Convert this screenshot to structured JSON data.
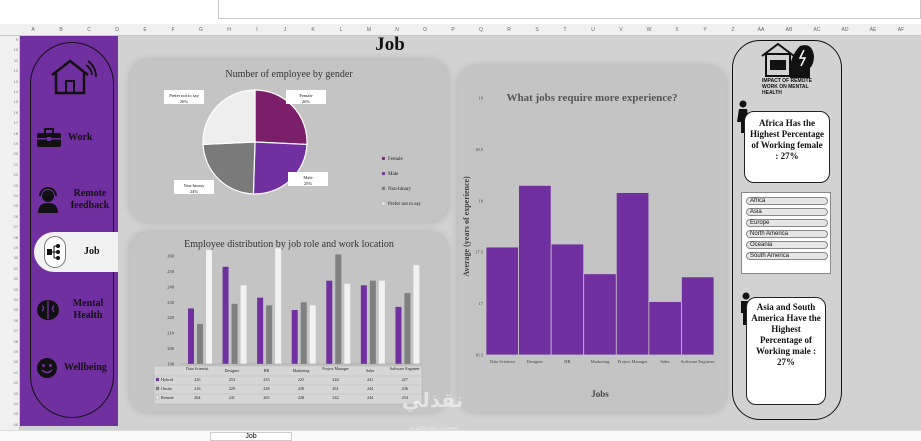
{
  "spreadsheet": {
    "columns": [
      "A",
      "B",
      "C",
      "D",
      "E",
      "F",
      "G",
      "H",
      "I",
      "J",
      "K",
      "L",
      "M",
      "N",
      "O",
      "P",
      "Q",
      "R",
      "S",
      "T",
      "U",
      "V",
      "W",
      "X",
      "Y",
      "Z",
      "AA",
      "AB",
      "AC",
      "AD",
      "AE",
      "AF"
    ],
    "rows": [
      "9",
      "10",
      "11",
      "12",
      "13",
      "14",
      "15",
      "16",
      "17",
      "18",
      "19",
      "20",
      "21",
      "22",
      "23",
      "24",
      "25",
      "26",
      "27",
      "28",
      "29",
      "30",
      "31",
      "32",
      "33",
      "34",
      "35",
      "36",
      "37",
      "38",
      "39",
      "40",
      "41",
      "42",
      "43",
      "44",
      "45",
      "46"
    ],
    "sheet_tab": "Job"
  },
  "title": "Job",
  "nav": {
    "items": [
      {
        "label": "Work",
        "icon": "briefcase-icon"
      },
      {
        "label": "Remote feedback",
        "icon": "headset-user-icon"
      },
      {
        "label": "Job",
        "icon": "org-chart-icon",
        "active": true
      },
      {
        "label": "Mental Health",
        "icon": "brain-icon"
      },
      {
        "label": "Wellbeing",
        "icon": "happy-face-icon"
      }
    ]
  },
  "brand": {
    "badge_text": "IMPACT OF REMOTE WORK ON MENTAL HEALTH"
  },
  "notes": {
    "female": "Africa Has the Highest Percentage of Working female : 27%",
    "male": "Asia and South America Have the Highest Percentage of Working male : 27%"
  },
  "slicer": {
    "items": [
      "Africa",
      "Asia",
      "Europe",
      "North America",
      "Oceania",
      "South America"
    ]
  },
  "watermark": {
    "main": "نقذلي",
    "sub": "nafezly.com"
  },
  "chart_data": [
    {
      "type": "pie",
      "title": "Number of employee by gender",
      "labels": [
        "Female",
        "Male",
        "Non-binary",
        "Prefer not to say"
      ],
      "data_labels": [
        "Female\n26%",
        "Male\n25%",
        "Non-binary\n24%",
        "Prefer not to say\n26%"
      ],
      "values": [
        26,
        25,
        24,
        26
      ],
      "colors": [
        "#7b1f6a",
        "#7030a0",
        "#7a7a7a",
        "#eeeeee"
      ],
      "legend": "right"
    },
    {
      "type": "bar",
      "title": "Employee distribution by job role and work location",
      "categories": [
        "Data Scientist",
        "Designer",
        "HR",
        "Marketing",
        "Project Manager",
        "Sales",
        "Software Engineer"
      ],
      "series": [
        {
          "name": "Hybrid",
          "values": [
            226,
            253,
            233,
            225,
            244,
            241,
            227
          ],
          "color": "#7030a0"
        },
        {
          "name": "Onsite",
          "values": [
            216,
            229,
            228,
            230,
            261,
            244,
            236
          ],
          "color": "#808080"
        },
        {
          "name": "Remote",
          "values": [
            264,
            241,
            265,
            228,
            242,
            244,
            254
          ],
          "color": "#f2f2f2"
        }
      ],
      "y_ticks": [
        190,
        200,
        210,
        220,
        230,
        240,
        250,
        260
      ],
      "ylim": [
        190,
        260
      ],
      "legend": "table"
    },
    {
      "type": "bar",
      "title": "What jobs require more experience?",
      "xlabel": "Jobs",
      "ylabel": "Average (years of experience)",
      "categories": [
        "Data Scientist",
        "Designer",
        "HR",
        "Marketing",
        "Project Manager",
        "Sales",
        "Software Engineer"
      ],
      "values": [
        17.55,
        18.15,
        17.58,
        17.29,
        18.08,
        17.02,
        17.26
      ],
      "y_ticks": [
        "16.5",
        "17",
        "17.5",
        "18",
        "18.5",
        "19"
      ],
      "ylim": [
        16.5,
        19
      ],
      "color": "#7030a0"
    }
  ]
}
